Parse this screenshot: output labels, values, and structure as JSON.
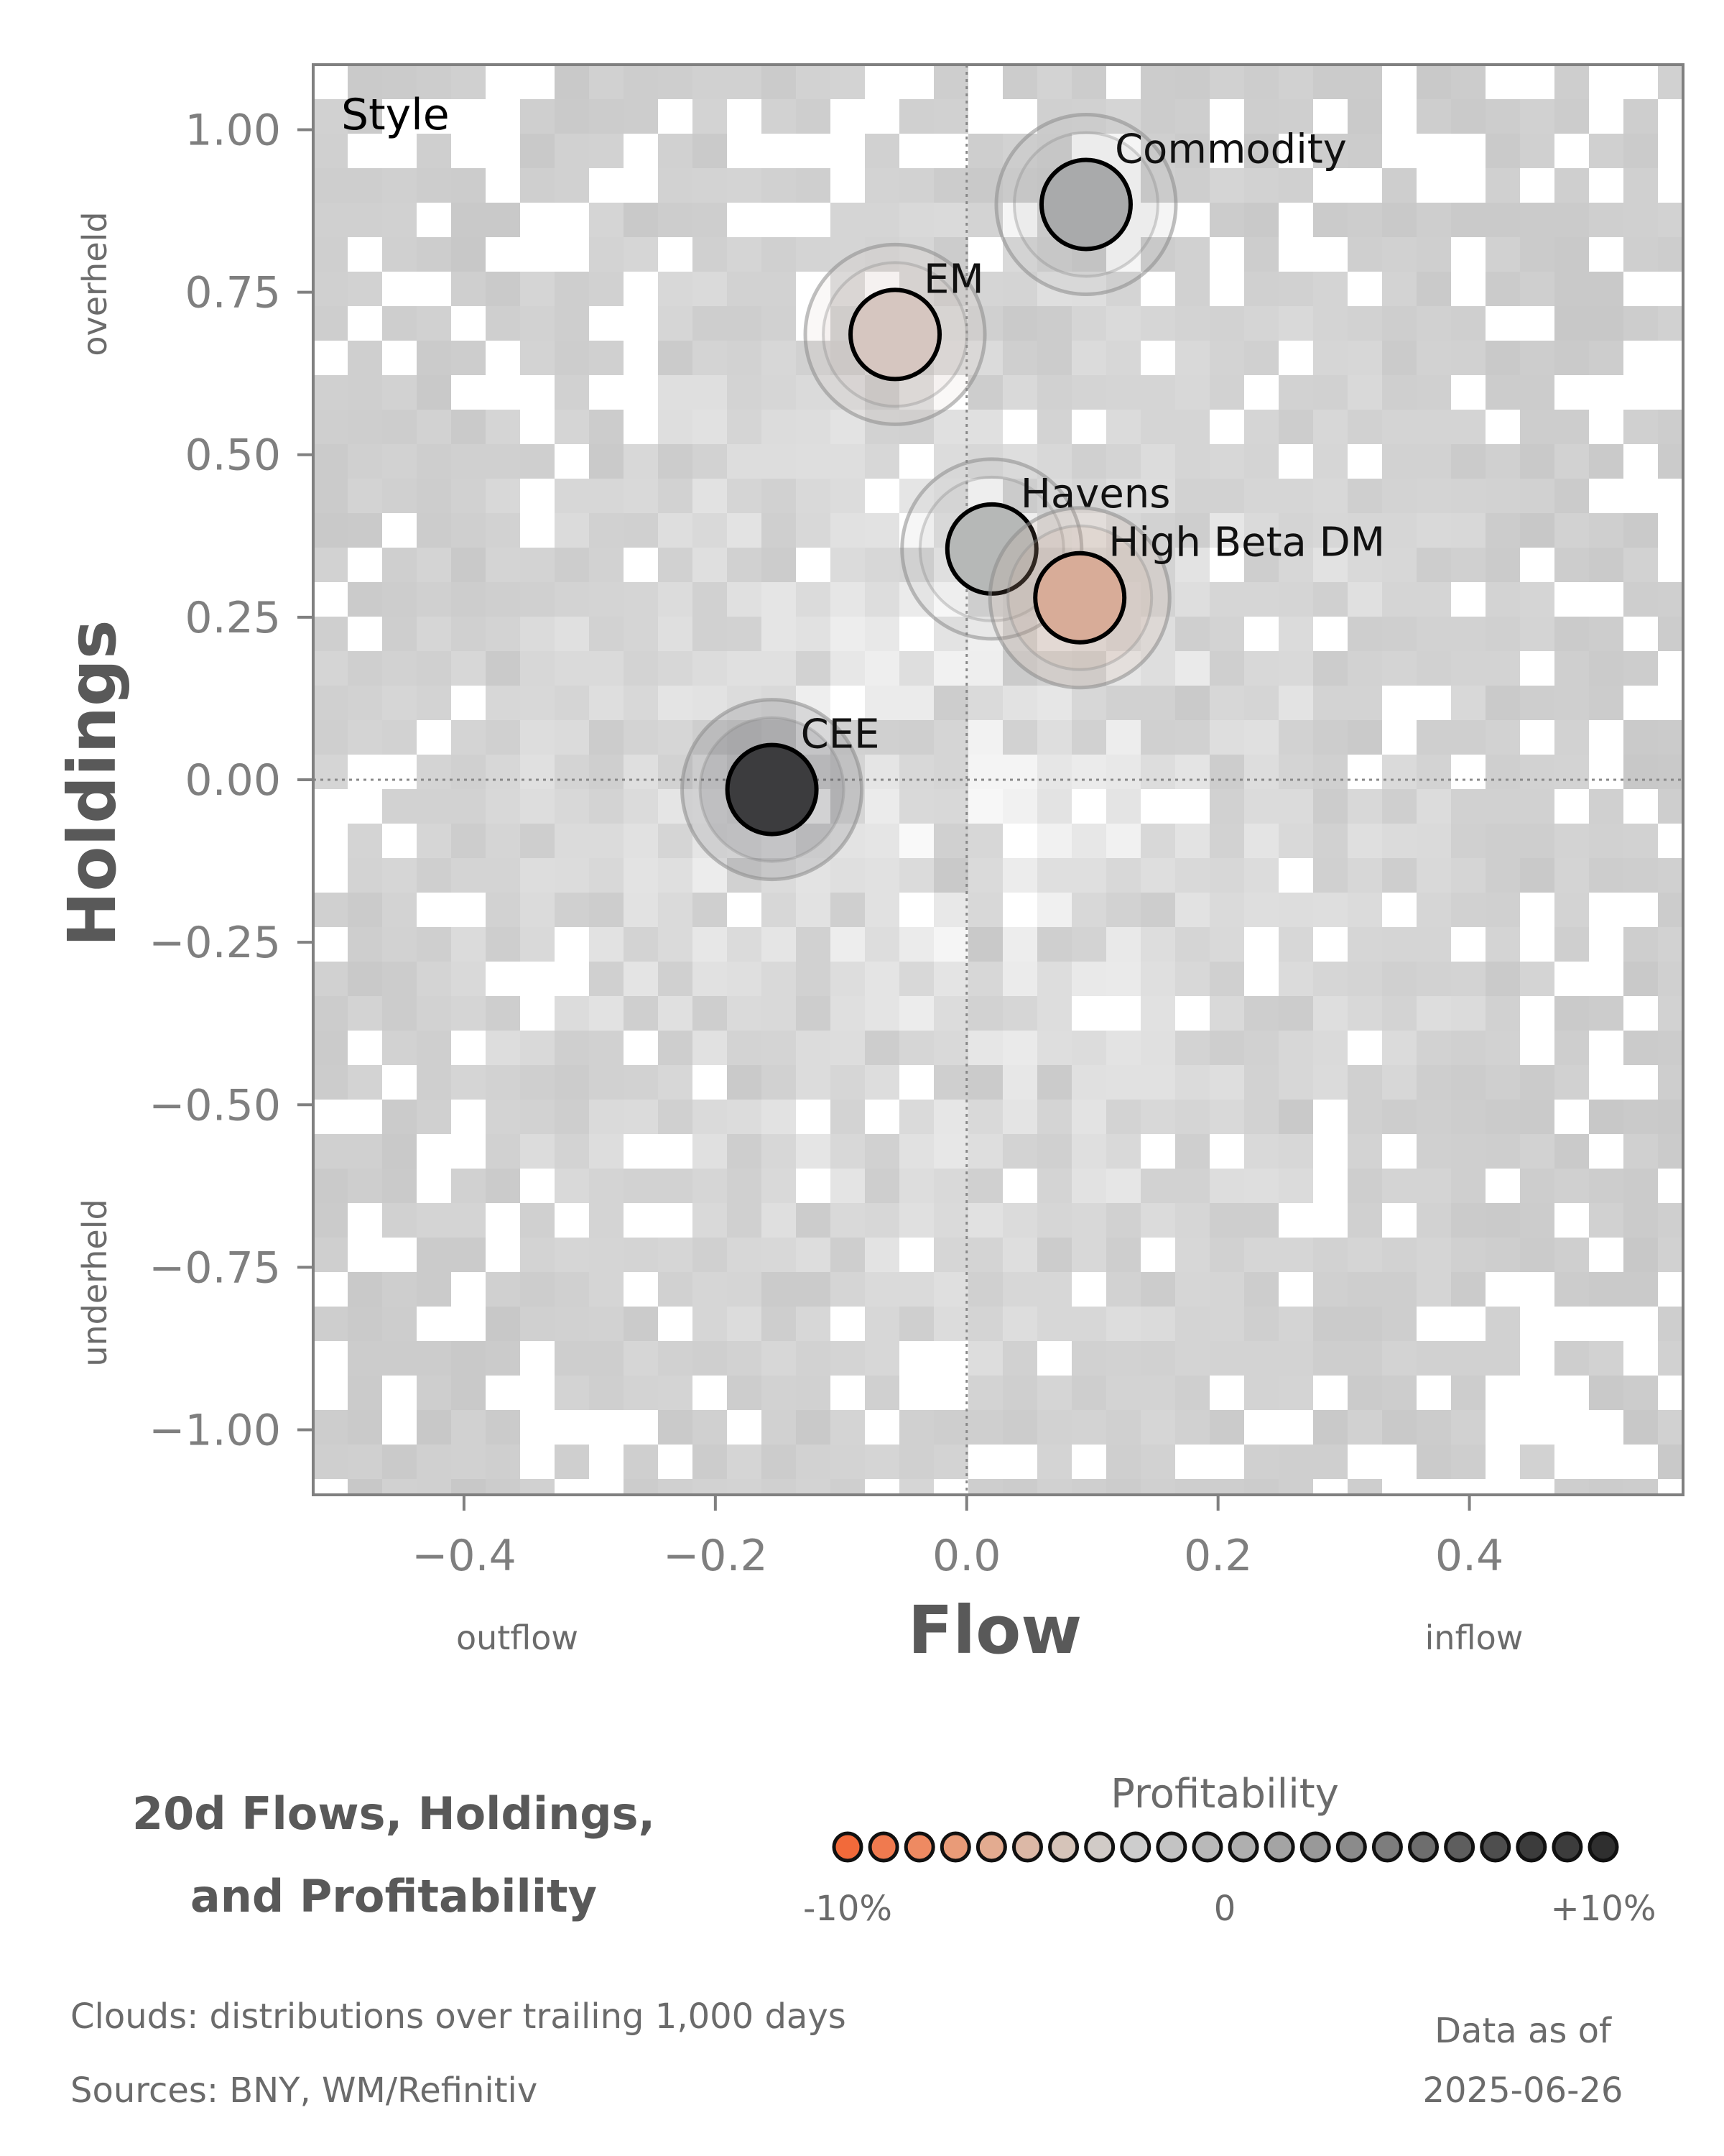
{
  "chart_data": {
    "type": "scatter",
    "panel_label": "Style",
    "xlabel": "Flow",
    "ylabel": "Holdings",
    "xlim": [
      -0.52,
      0.57
    ],
    "ylim": [
      -1.1,
      1.1
    ],
    "xticks": [
      -0.4,
      -0.2,
      0.0,
      0.2,
      0.4
    ],
    "xtick_labels": [
      "−0.4",
      "−0.2",
      "0.0",
      "0.2",
      "0.4"
    ],
    "yticks": [
      1.0,
      0.75,
      0.5,
      0.25,
      0.0,
      -0.25,
      -0.5,
      -0.75,
      -1.0
    ],
    "ytick_labels": [
      "1.00",
      "0.75",
      "0.50",
      "0.25",
      "0.00",
      "−0.25",
      "−0.50",
      "−0.75",
      "−1.00"
    ],
    "x_notes": {
      "low": "outflow",
      "high": "inflow"
    },
    "y_notes": {
      "high": "overheld",
      "low": "underheld"
    },
    "points": [
      {
        "name": "Commodity",
        "x": 0.095,
        "y": 0.885,
        "profitability": 2,
        "color": "#a9aaab"
      },
      {
        "name": "EM",
        "x": -0.057,
        "y": 0.685,
        "profitability": -1,
        "color": "#d6c6c0"
      },
      {
        "name": "Havens",
        "x": 0.02,
        "y": 0.355,
        "profitability": 1,
        "color": "#b6b8b7"
      },
      {
        "name": "High Beta DM",
        "x": 0.09,
        "y": 0.28,
        "profitability": -3,
        "color": "#d8ac98"
      },
      {
        "name": "CEE",
        "x": -0.155,
        "y": -0.015,
        "profitability": 10,
        "color": "#3c3c3e"
      }
    ],
    "legend": {
      "title": "Profitability",
      "low_label": "-10%",
      "mid_label": "0",
      "high_label": "+10%",
      "colors": [
        "#f26a3a",
        "#f07a4f",
        "#ee8a62",
        "#e99b78",
        "#e3ab90",
        "#dcb8a6",
        "#d6c4b9",
        "#d1cbc7",
        "#cdcdcd",
        "#c3c3c3",
        "#b9b9b9",
        "#afafaf",
        "#a4a4a4",
        "#999999",
        "#8b8b8b",
        "#7d7d7d",
        "#6e6e6e",
        "#5e5e5e",
        "#4e4e4e",
        "#3c3c3c",
        "#3c3c3c",
        "#2f2f2f"
      ]
    }
  },
  "title": {
    "line1": "20d Flows, Holdings,",
    "line2": "and Profitability"
  },
  "footer": {
    "clouds": "Clouds:  distributions over trailing 1,000 days",
    "sources": "Sources:  BNY, WM/Refinitiv",
    "asof_label": "Data as of",
    "asof_date": "2025-06-26"
  }
}
